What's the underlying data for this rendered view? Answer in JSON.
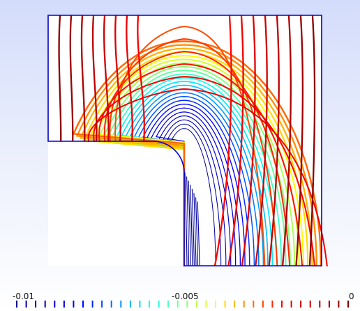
{
  "colorbar": {
    "min_label": "-0.01",
    "mid_label": "-0.005",
    "max_label": "0",
    "min": -0.01,
    "max": 0,
    "ticks": 36,
    "colormap": [
      "#00008f",
      "#0000ff",
      "#00ffff",
      "#ffff00",
      "#ff0000",
      "#800000"
    ]
  },
  "plot": {
    "contour_levels": 36,
    "frame_color": "#0000cc",
    "background_top": "#d3dcfb",
    "background_bottom": "#ffffff"
  }
}
